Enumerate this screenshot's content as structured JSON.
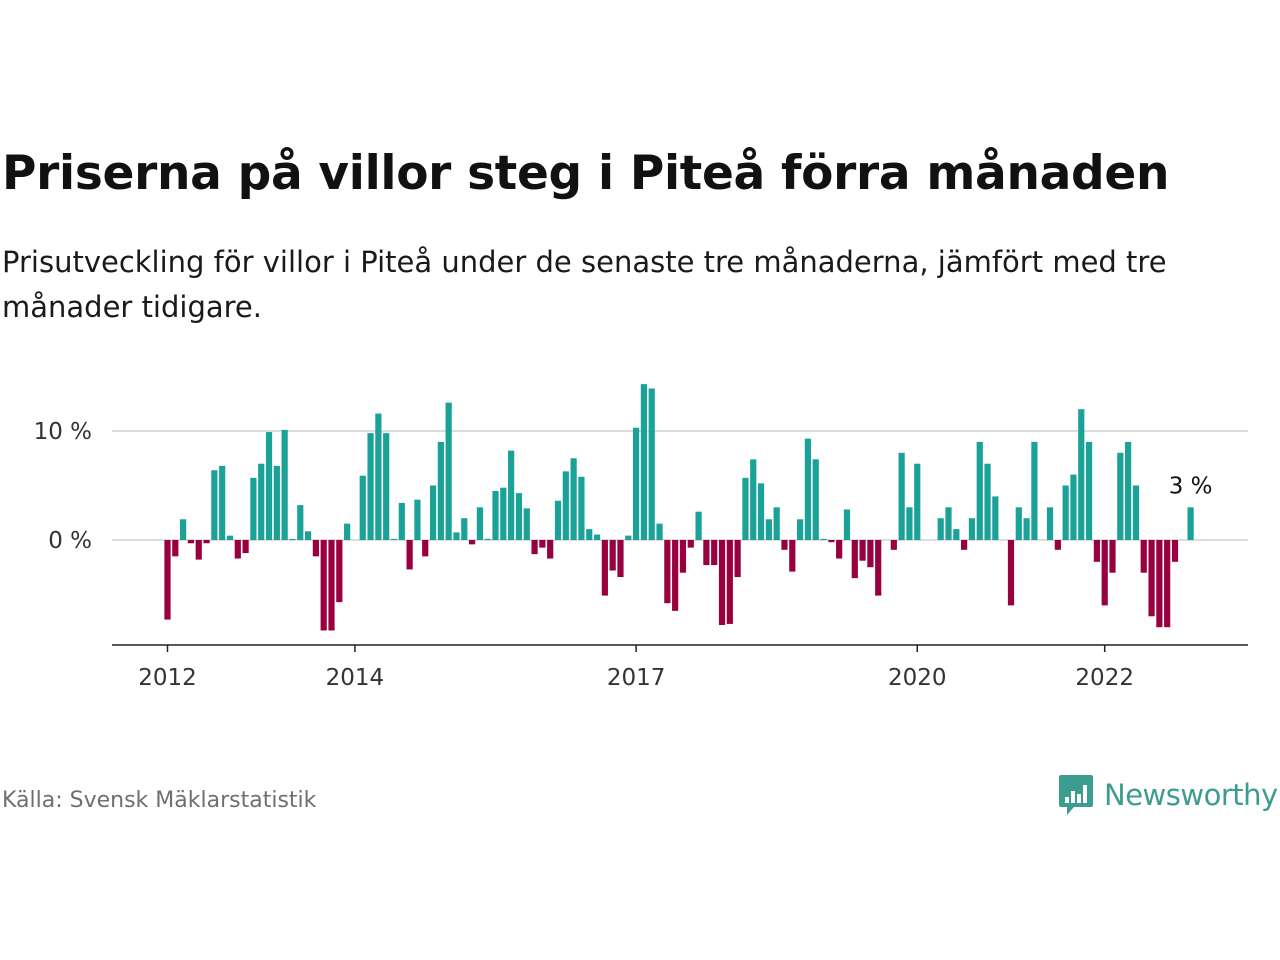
{
  "title": "Priserna på villor steg i Piteå förra månaden",
  "subtitle": "Prisutveckling för villor i Piteå under de senaste tre månaderna, jämfört med tre månader tidigare.",
  "source": "Källa: Svensk Mäklarstatistik",
  "brand": "Newsworthy",
  "colors": {
    "positive": "#1aa198",
    "negative": "#990040",
    "grid": "#dddddd",
    "axis": "#222222",
    "brand": "#3d9c90"
  },
  "chart_data": {
    "type": "bar",
    "title": "Priserna på villor steg i Piteå förra månaden",
    "xlabel": "",
    "ylabel": "",
    "y_unit": "%",
    "ylim": [
      -9.5,
      14.5
    ],
    "y_ticks": [
      {
        "value": 0,
        "label": "0 %"
      },
      {
        "value": 10,
        "label": "10 %"
      }
    ],
    "x_ticks": [
      "2012",
      "2014",
      "2017",
      "2020",
      "2022"
    ],
    "grid": true,
    "legend": "none",
    "series": [
      {
        "x_start": "2012-01",
        "frequency": "monthly",
        "values": [
          -7.3,
          -1.5,
          1.9,
          -0.3,
          -1.8,
          -0.3,
          6.4,
          6.8,
          0.4,
          -1.7,
          -1.2,
          5.7,
          7.0,
          9.9,
          6.8,
          10.1,
          0.1,
          3.2,
          0.8,
          -1.5,
          -8.3,
          -8.3,
          -5.7,
          1.5,
          0,
          5.9,
          9.8,
          11.6,
          9.8,
          0.1,
          3.4,
          -2.7,
          3.7,
          -1.5,
          5.0,
          9.0,
          12.6,
          0.7,
          2.0,
          -0.4,
          3.0,
          0.1,
          4.5,
          4.8,
          8.2,
          4.3,
          2.9,
          -1.3,
          -0.7,
          -1.7,
          3.6,
          6.3,
          7.5,
          5.8,
          1.0,
          0.5,
          -5.1,
          -2.8,
          -3.4,
          0.4,
          10.3,
          14.3,
          13.9,
          1.5,
          -5.8,
          -6.5,
          -3.0,
          -0.7,
          2.6,
          -2.3,
          -2.3,
          -7.8,
          -7.7,
          -3.4,
          5.7,
          7.4,
          5.2,
          1.9,
          3.0,
          -0.9,
          -2.9,
          1.9,
          9.3,
          7.4,
          0.1,
          -0.2,
          -1.7,
          2.8,
          -3.5,
          -1.9,
          -2.5,
          -5.1,
          0,
          -0.9,
          8.0,
          3.0,
          7.0,
          0,
          0,
          2.0,
          3.0,
          1.0,
          -0.9,
          2.0,
          9.0,
          7.0,
          4.0,
          0,
          -6.0,
          3.0,
          2.0,
          9.0,
          0,
          3.0,
          -0.9,
          5.0,
          6.0,
          12.0,
          9.0,
          -2.0,
          -6.0,
          -3.0,
          8.0,
          9.0,
          5.0,
          -3.0,
          -7.0,
          -8.0,
          -8.0,
          -2.0,
          0,
          3.0
        ]
      }
    ],
    "annotation": "3 %"
  }
}
